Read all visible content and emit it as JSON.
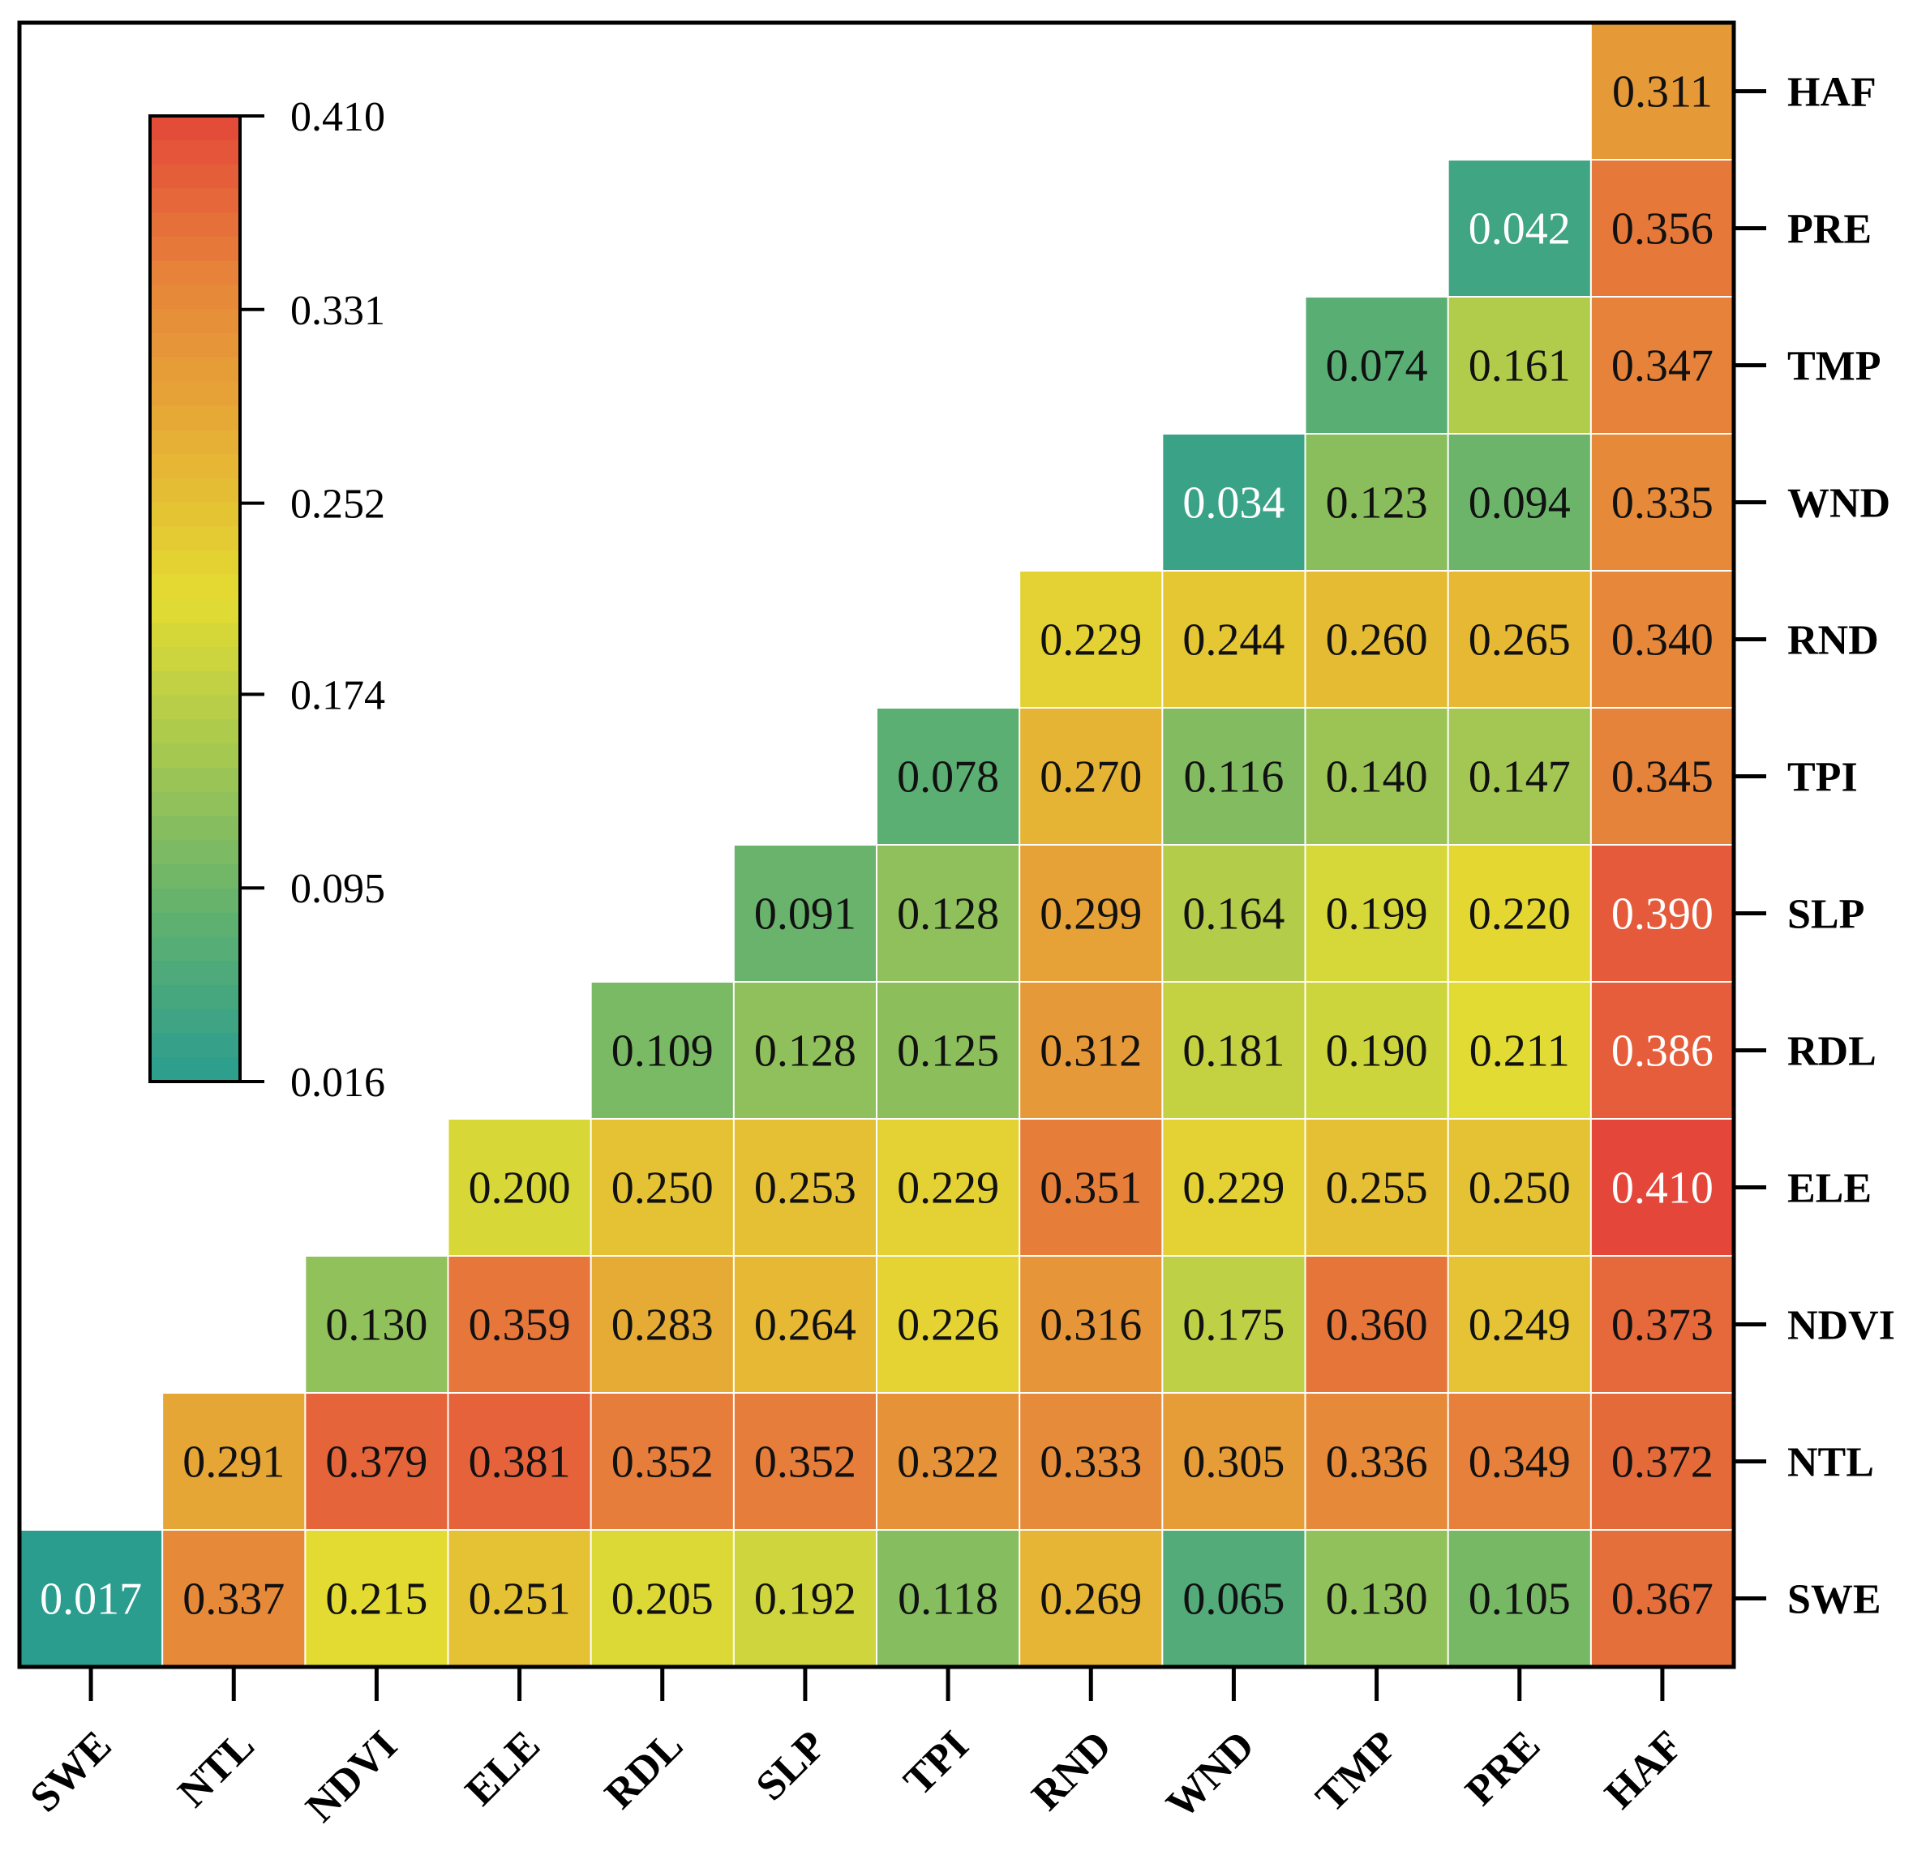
{
  "chart_data": {
    "type": "heatmap",
    "title": "",
    "xlabel": "",
    "ylabel": "",
    "x_categories": [
      "SWE",
      "NTL",
      "NDVI",
      "ELE",
      "RDL",
      "SLP",
      "TPI",
      "RND",
      "WND",
      "TMP",
      "PRE",
      "HAF"
    ],
    "y_categories": [
      "HAF",
      "PRE",
      "TMP",
      "WND",
      "RND",
      "TPI",
      "SLP",
      "RDL",
      "ELE",
      "NDVI",
      "NTL",
      "SWE"
    ],
    "values": [
      [
        null,
        null,
        null,
        null,
        null,
        null,
        null,
        null,
        null,
        null,
        null,
        0.311
      ],
      [
        null,
        null,
        null,
        null,
        null,
        null,
        null,
        null,
        null,
        null,
        0.042,
        0.356
      ],
      [
        null,
        null,
        null,
        null,
        null,
        null,
        null,
        null,
        null,
        0.074,
        0.161,
        0.347
      ],
      [
        null,
        null,
        null,
        null,
        null,
        null,
        null,
        null,
        0.034,
        0.123,
        0.094,
        0.335
      ],
      [
        null,
        null,
        null,
        null,
        null,
        null,
        null,
        0.229,
        0.244,
        0.26,
        0.265,
        0.34
      ],
      [
        null,
        null,
        null,
        null,
        null,
        null,
        0.078,
        0.27,
        0.116,
        0.14,
        0.147,
        0.345
      ],
      [
        null,
        null,
        null,
        null,
        null,
        0.091,
        0.128,
        0.299,
        0.164,
        0.199,
        0.22,
        0.39
      ],
      [
        null,
        null,
        null,
        null,
        0.109,
        0.128,
        0.125,
        0.312,
        0.181,
        0.19,
        0.211,
        0.386
      ],
      [
        null,
        null,
        null,
        0.2,
        0.25,
        0.253,
        0.229,
        0.351,
        0.229,
        0.255,
        0.25,
        0.41
      ],
      [
        null,
        null,
        0.13,
        0.359,
        0.283,
        0.264,
        0.226,
        0.316,
        0.175,
        0.36,
        0.249,
        0.373
      ],
      [
        null,
        0.291,
        0.379,
        0.381,
        0.352,
        0.352,
        0.322,
        0.333,
        0.305,
        0.336,
        0.349,
        0.372
      ],
      [
        0.017,
        0.337,
        0.215,
        0.251,
        0.205,
        0.192,
        0.118,
        0.269,
        0.065,
        0.13,
        0.105,
        0.367
      ]
    ],
    "value_labels": [
      [
        null,
        null,
        null,
        null,
        null,
        null,
        null,
        null,
        null,
        null,
        null,
        "0.311"
      ],
      [
        null,
        null,
        null,
        null,
        null,
        null,
        null,
        null,
        null,
        null,
        "0.042",
        "0.356"
      ],
      [
        null,
        null,
        null,
        null,
        null,
        null,
        null,
        null,
        null,
        "0.074",
        "0.161",
        "0.347"
      ],
      [
        null,
        null,
        null,
        null,
        null,
        null,
        null,
        null,
        "0.034",
        "0.123",
        "0.094",
        "0.335"
      ],
      [
        null,
        null,
        null,
        null,
        null,
        null,
        null,
        "0.229",
        "0.244",
        "0.260",
        "0.265",
        "0.340"
      ],
      [
        null,
        null,
        null,
        null,
        null,
        null,
        "0.078",
        "0.270",
        "0.116",
        "0.140",
        "0.147",
        "0.345"
      ],
      [
        null,
        null,
        null,
        null,
        null,
        "0.091",
        "0.128",
        "0.299",
        "0.164",
        "0.199",
        "0.220",
        "0.390"
      ],
      [
        null,
        null,
        null,
        null,
        "0.109",
        "0.128",
        "0.125",
        "0.312",
        "0.181",
        "0.190",
        "0.211",
        "0.386"
      ],
      [
        null,
        null,
        null,
        "0.200",
        "0.250",
        "0.253",
        "0.229",
        "0.351",
        "0.229",
        "0.255",
        "0.250",
        "0.410"
      ],
      [
        null,
        null,
        "0.130",
        "0.359",
        "0.283",
        "0.264",
        "0.226",
        "0.316",
        "0.175",
        "0.360",
        "0.249",
        "0.373"
      ],
      [
        null,
        "0.291",
        "0.379",
        "0.381",
        "0.352",
        "0.352",
        "0.322",
        "0.333",
        "0.305",
        "0.336",
        "0.349",
        "0.372"
      ],
      [
        "0.017",
        "0.337",
        "0.215",
        "0.251",
        "0.205",
        "0.192",
        "0.118",
        "0.269",
        "0.065",
        "0.130",
        "0.105",
        "0.367"
      ]
    ],
    "colorbar": {
      "min": 0.016,
      "max": 0.41,
      "ticks": [
        0.41,
        0.331,
        0.252,
        0.174,
        0.095,
        0.016
      ],
      "tick_labels": [
        "0.410",
        "0.331",
        "0.252",
        "0.174",
        "0.095",
        "0.016"
      ],
      "colors": [
        "#2a9d8f",
        "#5fb070",
        "#a3c752",
        "#e4dc32",
        "#e6ae35",
        "#e6843a",
        "#e4473a"
      ],
      "placement": "top-left inside plot"
    },
    "light_text_color": "#ffffff",
    "dark_text_color": "#111111",
    "grid_line_color": "#ffffff"
  }
}
